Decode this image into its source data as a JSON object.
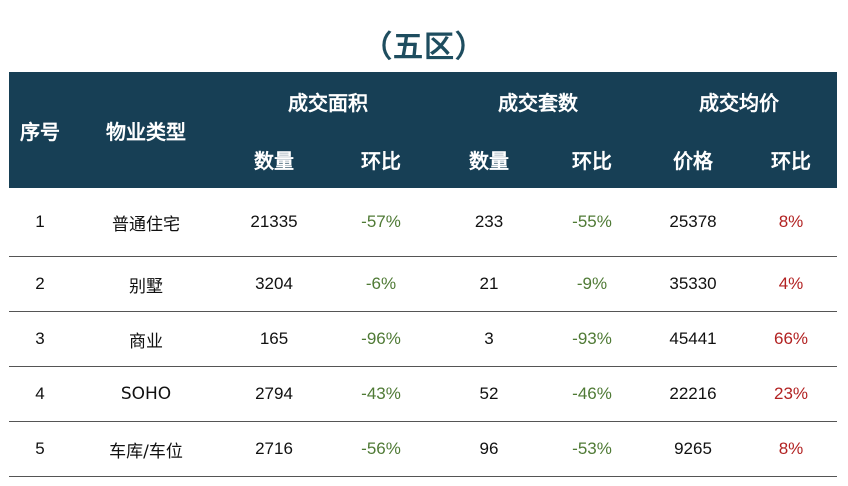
{
  "title": "（五区）",
  "header": {
    "seq": "序号",
    "type": "物业类型",
    "groups": [
      "成交面积",
      "成交套数",
      "成交均价"
    ],
    "sub": [
      "数量",
      "环比",
      "数量",
      "环比",
      "价格",
      "环比"
    ]
  },
  "colors": {
    "header_bg": "#173f55",
    "title": "#1e4d5f",
    "negative": "#4f7a35",
    "positive": "#b22222"
  },
  "rows": [
    {
      "seq": "1",
      "type": "普通住宅",
      "area_qty": "21335",
      "area_chg": "-57%",
      "units_qty": "233",
      "units_chg": "-55%",
      "price": "25378",
      "price_chg": "8%"
    },
    {
      "seq": "2",
      "type": "别墅",
      "area_qty": "3204",
      "area_chg": "-6%",
      "units_qty": "21",
      "units_chg": "-9%",
      "price": "35330",
      "price_chg": "4%"
    },
    {
      "seq": "3",
      "type": "商业",
      "area_qty": "165",
      "area_chg": "-96%",
      "units_qty": "3",
      "units_chg": "-93%",
      "price": "45441",
      "price_chg": "66%"
    },
    {
      "seq": "4",
      "type": "SOHO",
      "area_qty": "2794",
      "area_chg": "-43%",
      "units_qty": "52",
      "units_chg": "-46%",
      "price": "22216",
      "price_chg": "23%"
    },
    {
      "seq": "5",
      "type": "车库/车位",
      "area_qty": "2716",
      "area_chg": "-56%",
      "units_qty": "96",
      "units_chg": "-53%",
      "price": "9265",
      "price_chg": "8%"
    }
  ]
}
